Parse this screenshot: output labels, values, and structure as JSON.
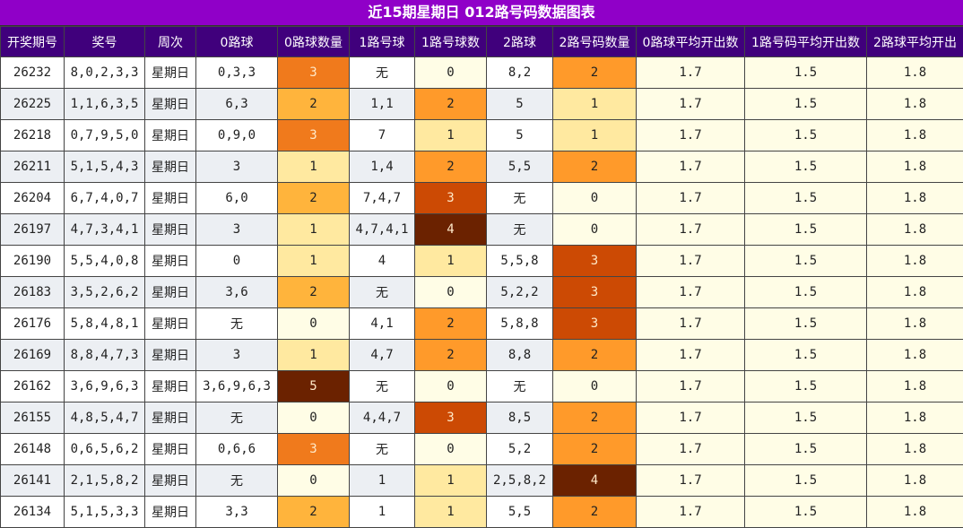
{
  "title": "近15期星期日 012路号码数据图表",
  "headers": [
    "开奖期号",
    "奖号",
    "周次",
    "0路球",
    "0路球数量",
    "1路号球",
    "1路号球数",
    "2路球",
    "2路号码数量",
    "0路球平均开出数",
    "1路号码平均开出数",
    "2路球平均开出"
  ],
  "rows": [
    [
      "26232",
      "8,0,2,3,3",
      "星期日",
      "0,3,3",
      "3",
      "无",
      "0",
      "8,2",
      "2",
      "1.7",
      "1.5",
      "1.8"
    ],
    [
      "26225",
      "1,1,6,3,5",
      "星期日",
      "6,3",
      "2",
      "1,1",
      "2",
      "5",
      "1",
      "1.7",
      "1.5",
      "1.8"
    ],
    [
      "26218",
      "0,7,9,5,0",
      "星期日",
      "0,9,0",
      "3",
      "7",
      "1",
      "5",
      "1",
      "1.7",
      "1.5",
      "1.8"
    ],
    [
      "26211",
      "5,1,5,4,3",
      "星期日",
      "3",
      "1",
      "1,4",
      "2",
      "5,5",
      "2",
      "1.7",
      "1.5",
      "1.8"
    ],
    [
      "26204",
      "6,7,4,0,7",
      "星期日",
      "6,0",
      "2",
      "7,4,7",
      "3",
      "无",
      "0",
      "1.7",
      "1.5",
      "1.8"
    ],
    [
      "26197",
      "4,7,3,4,1",
      "星期日",
      "3",
      "1",
      "4,7,4,1",
      "4",
      "无",
      "0",
      "1.7",
      "1.5",
      "1.8"
    ],
    [
      "26190",
      "5,5,4,0,8",
      "星期日",
      "0",
      "1",
      "4",
      "1",
      "5,5,8",
      "3",
      "1.7",
      "1.5",
      "1.8"
    ],
    [
      "26183",
      "3,5,2,6,2",
      "星期日",
      "3,6",
      "2",
      "无",
      "0",
      "5,2,2",
      "3",
      "1.7",
      "1.5",
      "1.8"
    ],
    [
      "26176",
      "5,8,4,8,1",
      "星期日",
      "无",
      "0",
      "4,1",
      "2",
      "5,8,8",
      "3",
      "1.7",
      "1.5",
      "1.8"
    ],
    [
      "26169",
      "8,8,4,7,3",
      "星期日",
      "3",
      "1",
      "4,7",
      "2",
      "8,8",
      "2",
      "1.7",
      "1.5",
      "1.8"
    ],
    [
      "26162",
      "3,6,9,6,3",
      "星期日",
      "3,6,9,6,3",
      "5",
      "无",
      "0",
      "无",
      "0",
      "1.7",
      "1.5",
      "1.8"
    ],
    [
      "26155",
      "4,8,5,4,7",
      "星期日",
      "无",
      "0",
      "4,4,7",
      "3",
      "8,5",
      "2",
      "1.7",
      "1.5",
      "1.8"
    ],
    [
      "26148",
      "0,6,5,6,2",
      "星期日",
      "0,6,6",
      "3",
      "无",
      "0",
      "5,2",
      "2",
      "1.7",
      "1.5",
      "1.8"
    ],
    [
      "26141",
      "2,1,5,8,2",
      "星期日",
      "无",
      "0",
      "1",
      "1",
      "2,5,8,2",
      "4",
      "1.7",
      "1.5",
      "1.8"
    ],
    [
      "26134",
      "5,1,5,3,3",
      "星期日",
      "3,3",
      "2",
      "1",
      "1",
      "5,5",
      "2",
      "1.7",
      "1.5",
      "1.8"
    ]
  ],
  "colors": {
    "title_bg": "#9000c8",
    "header_bg": "#40007c",
    "count_0": "#fffde6",
    "count_1": "#ffe9a0",
    "count_2": "#ffb43c",
    "count_3": "#f07a1c",
    "count_4": "#6b2200",
    "count_5": "#6b2200"
  }
}
